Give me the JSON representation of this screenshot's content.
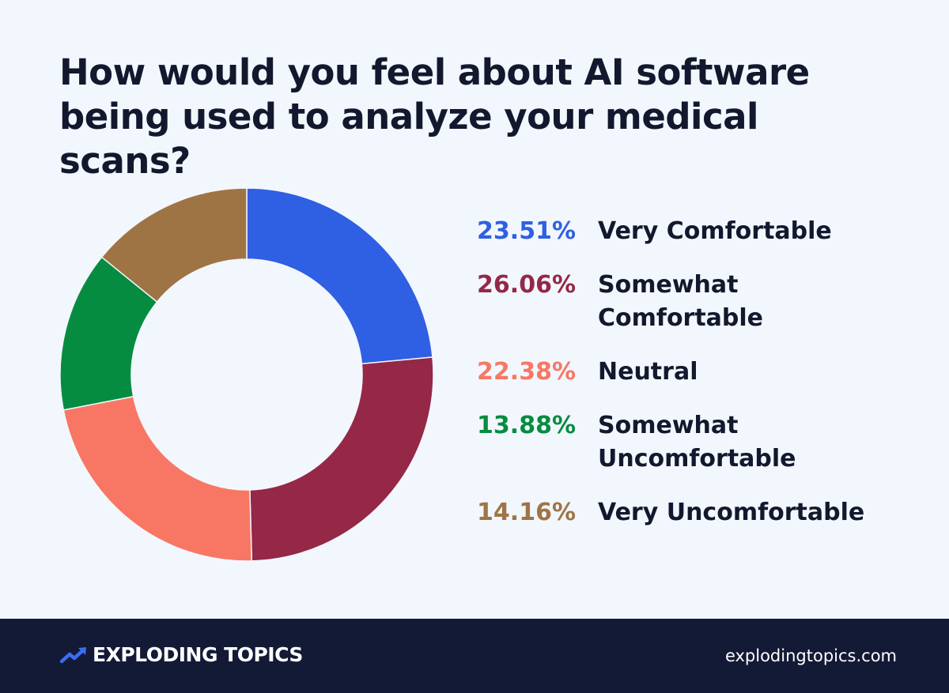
{
  "chart_data": {
    "type": "pie",
    "title": "How would you feel about AI software being used to analyze your medical scans?",
    "slices": [
      {
        "percent_label": "23.51%",
        "label": "Very Comfortable",
        "value": 23.51,
        "color": "#2f5fe3"
      },
      {
        "percent_label": "26.06%",
        "label": "Somewhat Comfortable",
        "value": 26.06,
        "color": "#952747"
      },
      {
        "percent_label": "22.38%",
        "label": "Neutral",
        "value": 22.38,
        "color": "#f87764"
      },
      {
        "percent_label": "13.88%",
        "label": "Somewhat Uncomfortable",
        "value": 13.88,
        "color": "#058c40"
      },
      {
        "percent_label": "14.16%",
        "label": "Very Uncomfortable",
        "value": 14.16,
        "color": "#9f7444"
      }
    ],
    "legend_position": "right"
  },
  "footer": {
    "brand": "EXPLODING TOPICS",
    "site": "explodingtopics.com",
    "logo_icon": "trending-up-arrow-icon",
    "logo_color": "#3d6cf0"
  }
}
